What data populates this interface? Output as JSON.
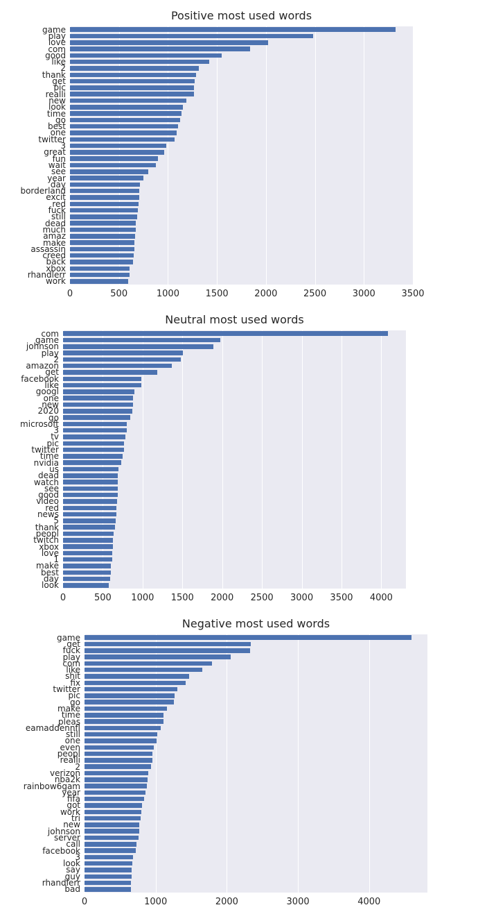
{
  "style": {
    "bar_color": "#4C72B0",
    "plot_background": "#EAEAF2",
    "grid_color": "#FFFFFF",
    "text_color": "#262626",
    "figure_background": "#FFFFFF"
  },
  "chart_data": [
    {
      "type": "bar",
      "orientation": "horizontal",
      "title": "Positive most used words",
      "xlabel": "",
      "ylabel": "",
      "grid": true,
      "xlim": [
        0,
        3500
      ],
      "xticks": [
        0,
        500,
        1000,
        1500,
        2000,
        2500,
        3000,
        3500
      ],
      "categories": [
        "game",
        "play",
        "love",
        "com",
        "good",
        "like",
        "2",
        "thank",
        "get",
        "pic",
        "realli",
        "new",
        "look",
        "time",
        "go",
        "best",
        "one",
        "twitter",
        "3",
        "great",
        "fun",
        "wait",
        "see",
        "year",
        "day",
        "borderland",
        "excit",
        "red",
        "fuck",
        "still",
        "dead",
        "much",
        "amaz",
        "make",
        "assassin",
        "creed",
        "back",
        "xbox",
        "rhandlerr",
        "work"
      ],
      "values": [
        3320,
        2480,
        2020,
        1840,
        1550,
        1420,
        1315,
        1285,
        1270,
        1268,
        1265,
        1185,
        1155,
        1135,
        1125,
        1105,
        1090,
        1070,
        985,
        960,
        900,
        880,
        800,
        750,
        715,
        710,
        705,
        698,
        692,
        685,
        675,
        670,
        662,
        660,
        655,
        650,
        640,
        610,
        605,
        595
      ]
    },
    {
      "type": "bar",
      "orientation": "horizontal",
      "title": "Neutral most used words",
      "xlabel": "",
      "ylabel": "",
      "grid": true,
      "xlim": [
        0,
        4310
      ],
      "xticks": [
        0,
        500,
        1000,
        1500,
        2000,
        2500,
        3000,
        3500,
        4000
      ],
      "categories": [
        "com",
        "game",
        "johnson",
        "play",
        "2",
        "amazon",
        "get",
        "facebook",
        "like",
        "googl",
        "one",
        "new",
        "2020",
        "go",
        "microsoft",
        "3",
        "tv",
        "pic",
        "twitter",
        "time",
        "nvidia",
        "us",
        "dead",
        "watch",
        "see",
        "good",
        "video",
        "red",
        "news",
        "5",
        "thank",
        "peopl",
        "twitch",
        "xbox",
        "love",
        "1",
        "make",
        "best",
        "day",
        "look"
      ],
      "values": [
        4080,
        1980,
        1890,
        1510,
        1480,
        1370,
        1180,
        985,
        980,
        895,
        880,
        877,
        870,
        845,
        800,
        798,
        785,
        770,
        768,
        745,
        733,
        700,
        690,
        688,
        687,
        686,
        675,
        674,
        672,
        663,
        652,
        635,
        630,
        628,
        620,
        618,
        602,
        600,
        595,
        575
      ]
    },
    {
      "type": "bar",
      "orientation": "horizontal",
      "title": "Negative most used words",
      "xlabel": "",
      "ylabel": "",
      "grid": true,
      "xlim": [
        0,
        4820
      ],
      "xticks": [
        0,
        1000,
        2000,
        3000,
        4000
      ],
      "categories": [
        "game",
        "get",
        "fuck",
        "play",
        "com",
        "like",
        "shit",
        "fix",
        "twitter",
        "pic",
        "go",
        "make",
        "time",
        "pleas",
        "eamaddennfl",
        "still",
        "one",
        "even",
        "peopl",
        "realli",
        "2",
        "verizon",
        "nba2k",
        "rainbow6gam",
        "year",
        "fifa",
        "got",
        "work",
        "tri",
        "new",
        "johnson",
        "server",
        "call",
        "facebook",
        "3",
        "look",
        "say",
        "guy",
        "rhandlerr",
        "bad"
      ],
      "values": [
        4600,
        2340,
        2330,
        2050,
        1790,
        1660,
        1470,
        1420,
        1300,
        1270,
        1260,
        1160,
        1110,
        1108,
        1070,
        1020,
        1010,
        970,
        952,
        950,
        930,
        900,
        890,
        875,
        860,
        840,
        810,
        800,
        790,
        770,
        768,
        760,
        730,
        725,
        680,
        670,
        667,
        660,
        657,
        655
      ]
    }
  ]
}
